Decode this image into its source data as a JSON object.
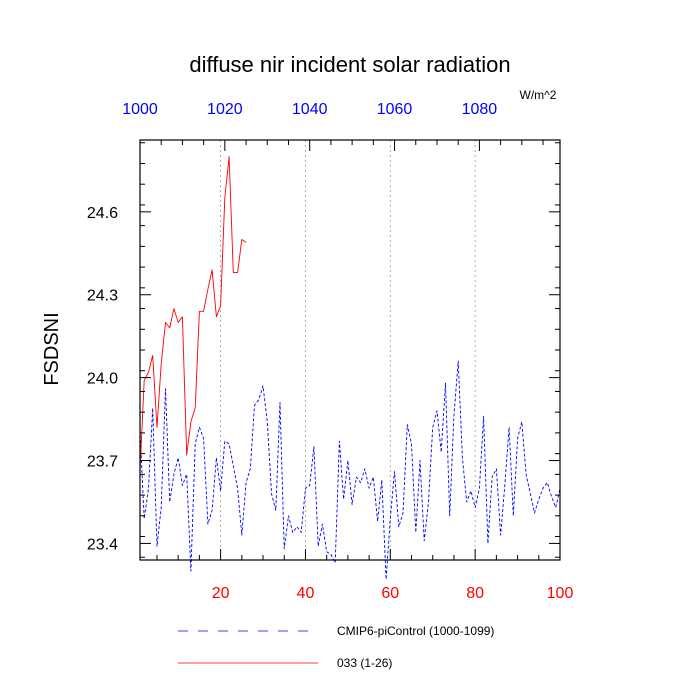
{
  "chart_data": {
    "type": "line",
    "title": "diffuse nir incident solar radiation",
    "units": "W/m^2",
    "ylabel": "FSDSNI",
    "ylim": [
      23.34,
      24.86
    ],
    "yticks": [
      "23.4",
      "23.7",
      "24.0",
      "24.3",
      "24.6"
    ],
    "bottom_axis": {
      "label_color": "#ff0000",
      "range": [
        1,
        100
      ],
      "ticks": [
        "20",
        "40",
        "60",
        "80",
        "100"
      ]
    },
    "top_axis": {
      "label_color": "#0000ff",
      "range": [
        1000,
        1099
      ],
      "ticks": [
        "1000",
        "1020",
        "1040",
        "1060",
        "1080"
      ]
    },
    "grid": "vertical dotted at major ticks",
    "series": [
      {
        "name": "CMIP6-piControl (1000-1099)",
        "color": "#0000ff",
        "dash": "dashed",
        "x": [
          1,
          2,
          3,
          4,
          5,
          6,
          7,
          8,
          9,
          10,
          11,
          12,
          13,
          14,
          15,
          16,
          17,
          18,
          19,
          20,
          21,
          22,
          23,
          24,
          25,
          26,
          27,
          28,
          29,
          30,
          31,
          32,
          33,
          34,
          35,
          36,
          37,
          38,
          39,
          40,
          41,
          42,
          43,
          44,
          45,
          46,
          47,
          48,
          49,
          50,
          51,
          52,
          53,
          54,
          55,
          56,
          57,
          58,
          59,
          60,
          61,
          62,
          63,
          64,
          65,
          66,
          67,
          68,
          69,
          70,
          71,
          72,
          73,
          74,
          75,
          76,
          77,
          78,
          79,
          80,
          81,
          82,
          83,
          84,
          85,
          86,
          87,
          88,
          89,
          90,
          91,
          92,
          93,
          94,
          95,
          96,
          97,
          98,
          99,
          100
        ],
        "values": [
          23.81,
          23.49,
          23.6,
          23.89,
          23.39,
          23.53,
          23.96,
          23.55,
          23.65,
          23.71,
          23.61,
          23.65,
          23.3,
          23.76,
          23.82,
          23.78,
          23.47,
          23.52,
          23.71,
          23.59,
          23.77,
          23.76,
          23.68,
          23.6,
          23.43,
          23.62,
          23.67,
          23.9,
          23.92,
          23.97,
          23.84,
          23.58,
          23.52,
          23.91,
          23.38,
          23.5,
          23.44,
          23.46,
          23.44,
          23.6,
          23.61,
          23.75,
          23.39,
          23.47,
          23.37,
          23.36,
          23.33,
          23.77,
          23.56,
          23.7,
          23.54,
          23.64,
          23.62,
          23.67,
          23.6,
          23.64,
          23.48,
          23.63,
          23.27,
          23.49,
          23.66,
          23.46,
          23.51,
          23.83,
          23.76,
          23.44,
          23.7,
          23.41,
          23.55,
          23.82,
          23.88,
          23.73,
          23.98,
          23.5,
          23.86,
          24.06,
          23.71,
          23.55,
          23.59,
          23.53,
          23.6,
          23.86,
          23.4,
          23.64,
          23.67,
          23.43,
          23.61,
          23.82,
          23.5,
          23.78,
          23.84,
          23.65,
          23.58,
          23.51,
          23.56,
          23.6,
          23.62,
          23.57,
          23.53,
          23.6
        ]
      },
      {
        "name": "033 (1-26)",
        "color": "#ff0000",
        "dash": "solid",
        "x": [
          1,
          2,
          3,
          4,
          5,
          6,
          7,
          8,
          9,
          10,
          11,
          12,
          13,
          14,
          15,
          16,
          17,
          18,
          19,
          20,
          21,
          22,
          23,
          24,
          25,
          26
        ],
        "values": [
          23.66,
          23.99,
          24.02,
          24.08,
          23.82,
          24.05,
          24.2,
          24.18,
          24.25,
          24.2,
          24.22,
          23.72,
          23.84,
          23.89,
          24.24,
          24.24,
          24.32,
          24.39,
          24.22,
          24.26,
          24.65,
          24.8,
          24.38,
          24.38,
          24.5,
          24.49
        ]
      }
    ],
    "legend": [
      {
        "label": "CMIP6-piControl (1000-1099)",
        "color": "#0000ff",
        "dash": "dashed"
      },
      {
        "label": "033 (1-26)",
        "color": "#ff0000",
        "dash": "solid"
      }
    ]
  }
}
